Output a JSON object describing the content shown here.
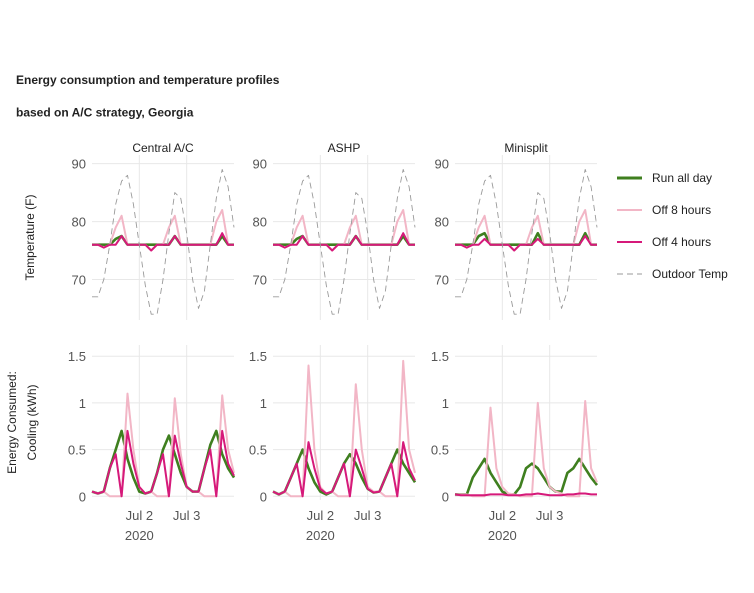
{
  "title": "Energy consumption and temperature profiles\nbased on A/C strategy, Georgia",
  "chart_data": [
    {
      "type": "line",
      "title": "Central A/C",
      "ylabel": "Temperature (F)",
      "legend": "right",
      "grid": true,
      "x": [
        0,
        3,
        6,
        9,
        12,
        15,
        18,
        21,
        24,
        27,
        30,
        33,
        36,
        39,
        42,
        45,
        48,
        51,
        54,
        57,
        60,
        63,
        66,
        69,
        72
      ],
      "xlim": [
        0,
        72
      ],
      "xticks": [
        24,
        48
      ],
      "ylim": [
        63,
        91.5
      ],
      "yticks": [
        70,
        80,
        90
      ],
      "series": [
        {
          "name": "Run all day",
          "color": "#3f7f1f",
          "values": [
            76,
            76,
            76,
            76,
            77,
            77.5,
            76,
            76,
            76,
            76,
            76,
            76,
            76,
            76,
            77.5,
            76,
            76,
            76,
            76,
            76,
            76,
            76,
            77.5,
            76,
            76
          ]
        },
        {
          "name": "Off 8 hours",
          "color": "#f2b6c6",
          "values": [
            76,
            76,
            75.5,
            76,
            79,
            81,
            76,
            76,
            76,
            76,
            75,
            76,
            76,
            79,
            81,
            76,
            76,
            76,
            76,
            76,
            76,
            80,
            82,
            76,
            76
          ]
        },
        {
          "name": "Off 4 hours",
          "color": "#d6197a",
          "values": [
            76,
            76,
            75.5,
            76,
            76,
            77.5,
            76,
            76,
            76,
            76,
            75,
            76,
            76,
            76,
            77.5,
            76,
            76,
            76,
            76,
            76,
            76,
            76,
            78,
            76,
            76
          ]
        },
        {
          "name": "Outdoor Temp",
          "color": "#9a9a9a",
          "dash": true,
          "values": [
            67,
            67,
            70,
            76,
            83,
            87,
            88,
            83,
            76,
            69,
            64,
            64,
            70,
            78,
            85,
            84,
            78,
            70,
            65,
            68,
            76,
            84,
            89,
            86,
            79
          ]
        }
      ]
    },
    {
      "type": "line",
      "title": "ASHP",
      "grid": true,
      "x": [
        0,
        3,
        6,
        9,
        12,
        15,
        18,
        21,
        24,
        27,
        30,
        33,
        36,
        39,
        42,
        45,
        48,
        51,
        54,
        57,
        60,
        63,
        66,
        69,
        72
      ],
      "xlim": [
        0,
        72
      ],
      "xticks": [
        24,
        48
      ],
      "ylim": [
        63,
        91.5
      ],
      "yticks": [
        70,
        80,
        90
      ],
      "series": [
        {
          "name": "Run all day",
          "color": "#3f7f1f",
          "values": [
            76,
            76,
            76,
            76,
            77,
            77.5,
            76,
            76,
            76,
            76,
            76,
            76,
            76,
            76,
            77.5,
            76,
            76,
            76,
            76,
            76,
            76,
            76,
            77.5,
            76,
            76
          ]
        },
        {
          "name": "Off 8 hours",
          "color": "#f2b6c6",
          "values": [
            76,
            76,
            75.5,
            76,
            79,
            81,
            76,
            76,
            76,
            76,
            75,
            76,
            76,
            79,
            81,
            76,
            76,
            76,
            76,
            76,
            76,
            80,
            82,
            76,
            76
          ]
        },
        {
          "name": "Off 4 hours",
          "color": "#d6197a",
          "values": [
            76,
            76,
            75.5,
            76,
            76,
            77.5,
            76,
            76,
            76,
            76,
            75,
            76,
            76,
            76,
            77.5,
            76,
            76,
            76,
            76,
            76,
            76,
            76,
            78,
            76,
            76
          ]
        },
        {
          "name": "Outdoor Temp",
          "color": "#9a9a9a",
          "dash": true,
          "values": [
            67,
            67,
            70,
            76,
            83,
            87,
            88,
            83,
            76,
            69,
            64,
            64,
            70,
            78,
            85,
            84,
            78,
            70,
            65,
            68,
            76,
            84,
            89,
            86,
            79
          ]
        }
      ]
    },
    {
      "type": "line",
      "title": "Minisplit",
      "grid": true,
      "x": [
        0,
        3,
        6,
        9,
        12,
        15,
        18,
        21,
        24,
        27,
        30,
        33,
        36,
        39,
        42,
        45,
        48,
        51,
        54,
        57,
        60,
        63,
        66,
        69,
        72
      ],
      "xlim": [
        0,
        72
      ],
      "xticks": [
        24,
        48
      ],
      "ylim": [
        63,
        91.5
      ],
      "yticks": [
        70,
        80,
        90
      ],
      "series": [
        {
          "name": "Run all day",
          "color": "#3f7f1f",
          "values": [
            76,
            76,
            76,
            76,
            77.5,
            78,
            76,
            76,
            76,
            76,
            76,
            76,
            76,
            76,
            78,
            76,
            76,
            76,
            76,
            76,
            76,
            76,
            78,
            76,
            76
          ]
        },
        {
          "name": "Off 8 hours",
          "color": "#f2b6c6",
          "values": [
            76,
            76,
            75.5,
            76,
            79,
            81,
            76,
            76,
            76,
            76,
            75,
            76,
            76,
            79,
            81,
            76,
            76,
            76,
            76,
            76,
            76,
            80,
            82,
            76,
            76
          ]
        },
        {
          "name": "Off 4 hours",
          "color": "#d6197a",
          "values": [
            76,
            76,
            75.5,
            76,
            76,
            77,
            76,
            76,
            76,
            76,
            75,
            76,
            76,
            76,
            77,
            76,
            76,
            76,
            76,
            76,
            76,
            76,
            77.5,
            76,
            76
          ]
        },
        {
          "name": "Outdoor Temp",
          "color": "#9a9a9a",
          "dash": true,
          "values": [
            67,
            67,
            70,
            76,
            83,
            87,
            88,
            83,
            76,
            69,
            64,
            64,
            70,
            78,
            85,
            84,
            78,
            70,
            65,
            68,
            76,
            84,
            89,
            86,
            79
          ]
        }
      ]
    },
    {
      "type": "line",
      "ylabel": "Energy Consumed:\nCooling (kWh)",
      "grid": true,
      "x": [
        0,
        3,
        6,
        9,
        12,
        15,
        18,
        21,
        24,
        27,
        30,
        33,
        36,
        39,
        42,
        45,
        48,
        51,
        54,
        57,
        60,
        63,
        66,
        69,
        72
      ],
      "xlim": [
        0,
        72
      ],
      "xticks": [
        {
          "value": 24,
          "label": "Jul 2\n2020"
        },
        {
          "value": 48,
          "label": "Jul 3"
        }
      ],
      "ylim": [
        -0.04,
        1.62
      ],
      "yticks": [
        0,
        0.5,
        1,
        1.5
      ],
      "series": [
        {
          "name": "Run all day",
          "color": "#3f7f1f",
          "values": [
            0.05,
            0.03,
            0.05,
            0.3,
            0.5,
            0.7,
            0.4,
            0.2,
            0.05,
            0.03,
            0.05,
            0.25,
            0.5,
            0.65,
            0.45,
            0.25,
            0.1,
            0.05,
            0.05,
            0.3,
            0.55,
            0.7,
            0.45,
            0.3,
            0.2
          ]
        },
        {
          "name": "Off 8 hours",
          "color": "#f2b6c6",
          "values": [
            0.05,
            0.03,
            0.05,
            0,
            0,
            0,
            1.1,
            0.5,
            0.1,
            0.03,
            0.05,
            0,
            0,
            0,
            1.05,
            0.45,
            0.1,
            0.05,
            0.05,
            0,
            0,
            0,
            1.08,
            0.5,
            0.25
          ]
        },
        {
          "name": "Off 4 hours",
          "color": "#d6197a",
          "values": [
            0.05,
            0.03,
            0.05,
            0.3,
            0.45,
            0,
            0.7,
            0.35,
            0.1,
            0.03,
            0.05,
            0.25,
            0.45,
            0,
            0.65,
            0.35,
            0.1,
            0.05,
            0.05,
            0.3,
            0.5,
            0,
            0.7,
            0.35,
            0.22
          ]
        }
      ]
    },
    {
      "type": "line",
      "grid": true,
      "x": [
        0,
        3,
        6,
        9,
        12,
        15,
        18,
        21,
        24,
        27,
        30,
        33,
        36,
        39,
        42,
        45,
        48,
        51,
        54,
        57,
        60,
        63,
        66,
        69,
        72
      ],
      "xlim": [
        0,
        72
      ],
      "xticks": [
        {
          "value": 24,
          "label": "Jul 2\n2020"
        },
        {
          "value": 48,
          "label": "Jul 3"
        }
      ],
      "ylim": [
        -0.04,
        1.62
      ],
      "yticks": [
        0,
        0.5,
        1,
        1.5
      ],
      "series": [
        {
          "name": "Run all day",
          "color": "#3f7f1f",
          "values": [
            0.05,
            0.02,
            0.05,
            0.2,
            0.35,
            0.5,
            0.3,
            0.15,
            0.05,
            0.02,
            0.05,
            0.2,
            0.35,
            0.45,
            0.35,
            0.2,
            0.08,
            0.04,
            0.05,
            0.2,
            0.35,
            0.5,
            0.35,
            0.25,
            0.15
          ]
        },
        {
          "name": "Off 8 hours",
          "color": "#f2b6c6",
          "values": [
            0.05,
            0.02,
            0.05,
            0,
            0,
            0,
            1.4,
            0.5,
            0.1,
            0.03,
            0.05,
            0,
            0,
            0,
            1.2,
            0.5,
            0.1,
            0.05,
            0.05,
            0,
            0,
            0,
            1.45,
            0.5,
            0.25
          ]
        },
        {
          "name": "Off 4 hours",
          "color": "#d6197a",
          "values": [
            0.05,
            0.02,
            0.05,
            0.2,
            0.35,
            0,
            0.58,
            0.3,
            0.08,
            0.03,
            0.05,
            0.2,
            0.35,
            0,
            0.5,
            0.3,
            0.08,
            0.04,
            0.05,
            0.2,
            0.35,
            0,
            0.58,
            0.3,
            0.17
          ]
        }
      ]
    },
    {
      "type": "line",
      "grid": true,
      "x": [
        0,
        3,
        6,
        9,
        12,
        15,
        18,
        21,
        24,
        27,
        30,
        33,
        36,
        39,
        42,
        45,
        48,
        51,
        54,
        57,
        60,
        63,
        66,
        69,
        72
      ],
      "xlim": [
        0,
        72
      ],
      "xticks": [
        {
          "value": 24,
          "label": "Jul 2\n2020"
        },
        {
          "value": 48,
          "label": "Jul 3"
        }
      ],
      "ylim": [
        -0.04,
        1.62
      ],
      "yticks": [
        0,
        0.5,
        1,
        1.5
      ],
      "series": [
        {
          "name": "Run all day",
          "color": "#3f7f1f",
          "values": [
            0.02,
            0.02,
            0.02,
            0.2,
            0.3,
            0.4,
            0.25,
            0.15,
            0.05,
            0.02,
            0.02,
            0.1,
            0.3,
            0.35,
            0.3,
            0.2,
            0.1,
            0.05,
            0.05,
            0.25,
            0.3,
            0.4,
            0.3,
            0.2,
            0.12
          ]
        },
        {
          "name": "Off 8 hours",
          "color": "#f2b6c6",
          "values": [
            0.02,
            0.02,
            0.02,
            0,
            0,
            0,
            0.95,
            0.3,
            0.1,
            0.03,
            0.02,
            0,
            0,
            0,
            1.0,
            0.3,
            0.1,
            0.05,
            0.03,
            0,
            0,
            0,
            1.02,
            0.3,
            0.15
          ]
        },
        {
          "name": "Off 4 hours",
          "color": "#d6197a",
          "values": [
            0.02,
            0.01,
            0.01,
            0.01,
            0.01,
            0.01,
            0.02,
            0.02,
            0.02,
            0.01,
            0.01,
            0.01,
            0.02,
            0.02,
            0.03,
            0.02,
            0.01,
            0.01,
            0.01,
            0.02,
            0.02,
            0.03,
            0.03,
            0.02,
            0.02
          ]
        }
      ]
    }
  ]
}
